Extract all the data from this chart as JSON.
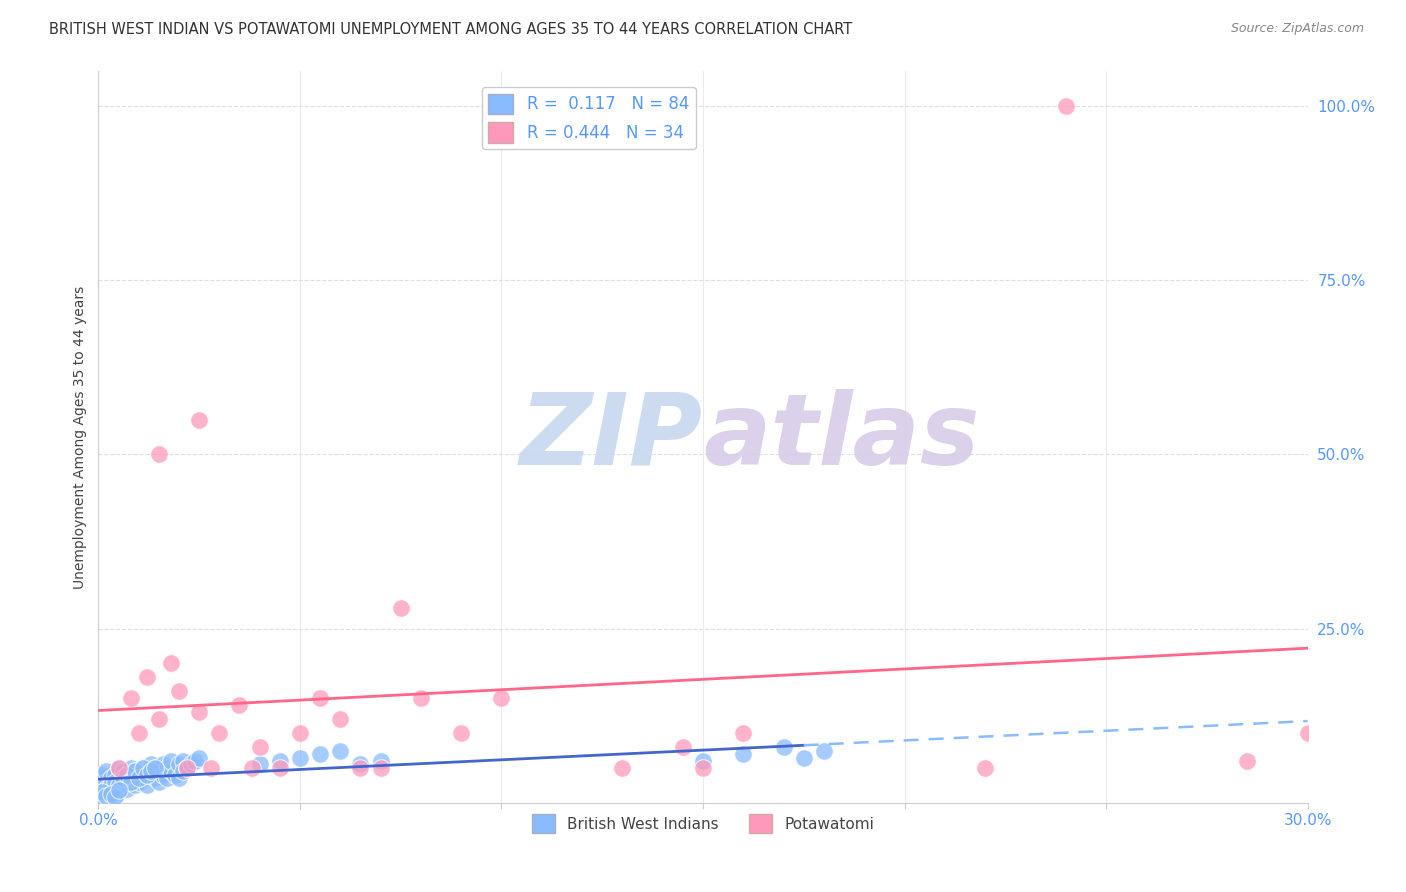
{
  "title": "BRITISH WEST INDIAN VS POTAWATOMI UNEMPLOYMENT AMONG AGES 35 TO 44 YEARS CORRELATION CHART",
  "source": "Source: ZipAtlas.com",
  "ylabel": "Unemployment Among Ages 35 to 44 years",
  "xmin": 0.0,
  "xmax": 0.3,
  "ymin": 0.0,
  "ymax": 1.05,
  "xticks": [
    0.0,
    0.05,
    0.1,
    0.15,
    0.2,
    0.25,
    0.3
  ],
  "ytick_vals_right": [
    0.25,
    0.5,
    0.75,
    1.0
  ],
  "ytick_labels_right": [
    "25.0%",
    "50.0%",
    "75.0%",
    "100.0%"
  ],
  "color_bwi": "#88BBFF",
  "color_pot": "#FF99BB",
  "color_bwi_line_solid": "#4466CC",
  "color_bwi_line_dash": "#88BBFF",
  "color_pot_line": "#FF6688",
  "watermark_zip_color": "#C8D8F0",
  "watermark_atlas_color": "#D0C8E8",
  "background_color": "#FFFFFF",
  "grid_color": "#E0E0E0",
  "axis_label_color": "#5599FF",
  "text_color": "#444444",
  "bwi_x": [
    0.0,
    0.0,
    0.001,
    0.001,
    0.001,
    0.002,
    0.002,
    0.002,
    0.003,
    0.003,
    0.003,
    0.004,
    0.004,
    0.005,
    0.005,
    0.005,
    0.006,
    0.006,
    0.006,
    0.007,
    0.007,
    0.007,
    0.008,
    0.008,
    0.009,
    0.009,
    0.01,
    0.01,
    0.011,
    0.011,
    0.012,
    0.012,
    0.013,
    0.013,
    0.014,
    0.014,
    0.015,
    0.015,
    0.016,
    0.016,
    0.017,
    0.017,
    0.018,
    0.018,
    0.019,
    0.02,
    0.02,
    0.021,
    0.021,
    0.022,
    0.023,
    0.024,
    0.025,
    0.002,
    0.003,
    0.004,
    0.005,
    0.006,
    0.007,
    0.008,
    0.009,
    0.01,
    0.011,
    0.012,
    0.013,
    0.014,
    0.0,
    0.001,
    0.002,
    0.003,
    0.004,
    0.005,
    0.15,
    0.16,
    0.17,
    0.175,
    0.18,
    0.04,
    0.045,
    0.05,
    0.055,
    0.06,
    0.065,
    0.07
  ],
  "bwi_y": [
    0.02,
    0.03,
    0.025,
    0.035,
    0.04,
    0.03,
    0.045,
    0.015,
    0.025,
    0.035,
    0.01,
    0.04,
    0.02,
    0.03,
    0.05,
    0.015,
    0.035,
    0.025,
    0.045,
    0.03,
    0.04,
    0.02,
    0.035,
    0.05,
    0.025,
    0.045,
    0.04,
    0.03,
    0.05,
    0.035,
    0.045,
    0.025,
    0.04,
    0.055,
    0.035,
    0.05,
    0.045,
    0.03,
    0.055,
    0.04,
    0.05,
    0.035,
    0.045,
    0.06,
    0.04,
    0.055,
    0.035,
    0.06,
    0.045,
    0.05,
    0.055,
    0.06,
    0.065,
    0.02,
    0.025,
    0.03,
    0.025,
    0.035,
    0.04,
    0.03,
    0.045,
    0.035,
    0.05,
    0.04,
    0.045,
    0.05,
    0.01,
    0.015,
    0.01,
    0.012,
    0.008,
    0.018,
    0.06,
    0.07,
    0.08,
    0.065,
    0.075,
    0.055,
    0.06,
    0.065,
    0.07,
    0.075,
    0.055,
    0.06
  ],
  "pot_x": [
    0.005,
    0.008,
    0.01,
    0.012,
    0.015,
    0.018,
    0.02,
    0.022,
    0.025,
    0.028,
    0.03,
    0.035,
    0.038,
    0.04,
    0.045,
    0.05,
    0.055,
    0.06,
    0.065,
    0.07,
    0.075,
    0.08,
    0.09,
    0.1,
    0.13,
    0.145,
    0.15,
    0.16,
    0.22,
    0.24,
    0.015,
    0.025,
    0.3,
    0.285
  ],
  "pot_y": [
    0.05,
    0.15,
    0.1,
    0.18,
    0.12,
    0.2,
    0.16,
    0.05,
    0.13,
    0.05,
    0.1,
    0.14,
    0.05,
    0.08,
    0.05,
    0.1,
    0.15,
    0.12,
    0.05,
    0.05,
    0.28,
    0.15,
    0.1,
    0.15,
    0.05,
    0.08,
    0.05,
    0.1,
    0.05,
    1.0,
    0.5,
    0.55,
    0.1,
    0.06
  ]
}
